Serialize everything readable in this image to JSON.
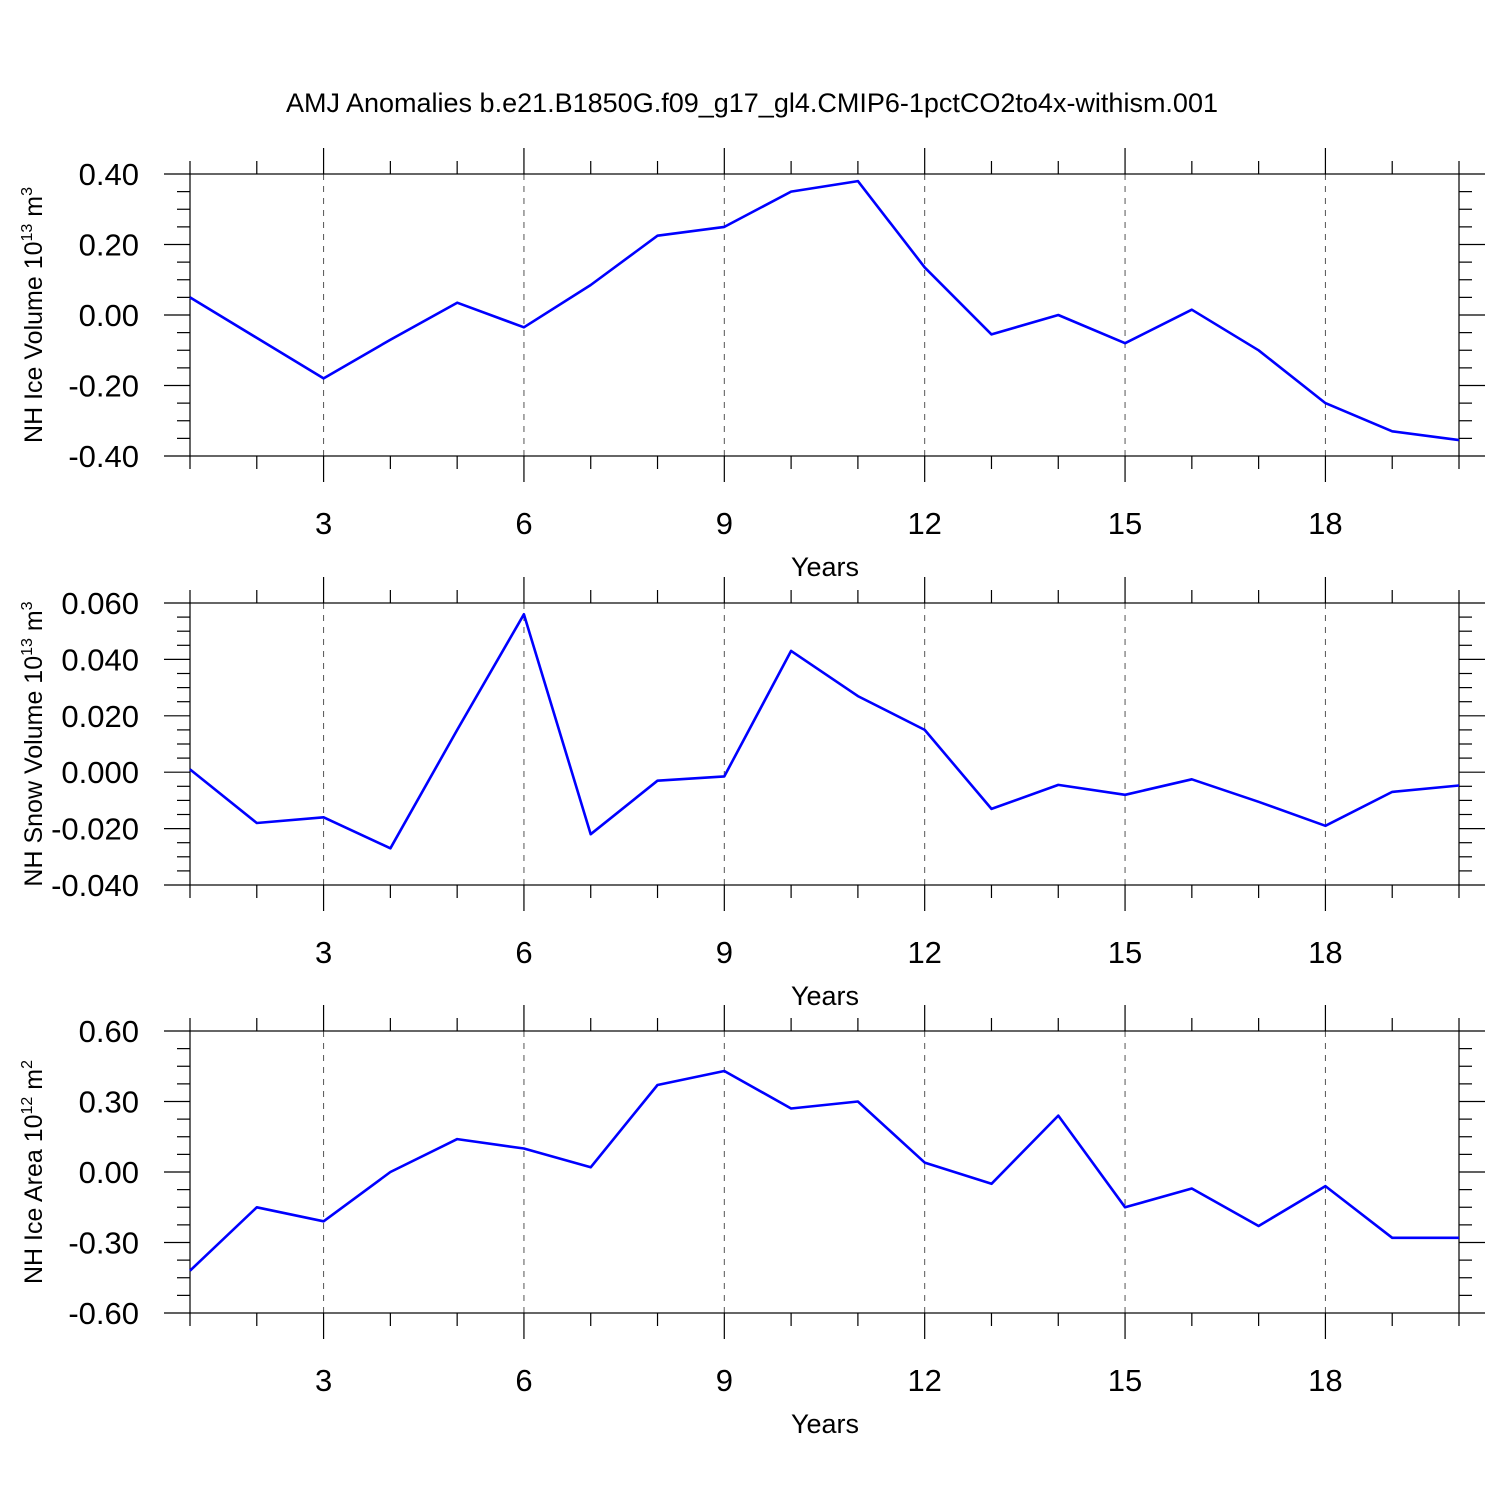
{
  "title": "AMJ Anomalies b.e21.B1850G.f09_g17_gl4.CMIP6-1pctCO2to4x-withism.001",
  "line_color": "#0000ff",
  "chart_data": [
    {
      "type": "line",
      "ylabel": "NH Ice Volume 10",
      "ylabel_sup1": "13",
      "ylabel_mid": " m",
      "ylabel_sup2": "3",
      "xlabel": "Years",
      "xlim": [
        1,
        20
      ],
      "ylim": [
        -0.4,
        0.4
      ],
      "yticks": [
        -0.4,
        -0.2,
        0.0,
        0.2,
        0.4
      ],
      "ytick_labels": [
        "-0.40",
        "-0.20",
        "0.00",
        "0.20",
        "0.40"
      ],
      "xticks": [
        3,
        6,
        9,
        12,
        15,
        18
      ],
      "xtick_labels": [
        "3",
        "6",
        "9",
        "12",
        "15",
        "18"
      ],
      "x": [
        1,
        2,
        3,
        4,
        5,
        6,
        7,
        8,
        9,
        10,
        11,
        12,
        13,
        14,
        15,
        16,
        17,
        18,
        19,
        20
      ],
      "y": [
        0.05,
        -0.065,
        -0.18,
        -0.07,
        0.035,
        -0.035,
        0.085,
        0.225,
        0.25,
        0.35,
        0.38,
        0.135,
        -0.055,
        0.0,
        -0.08,
        0.015,
        -0.1,
        -0.25,
        -0.33,
        -0.355
      ]
    },
    {
      "type": "line",
      "ylabel": "NH Snow Volume 10",
      "ylabel_sup1": "13",
      "ylabel_mid": " m",
      "ylabel_sup2": "3",
      "xlabel": "Years",
      "xlim": [
        1,
        20
      ],
      "ylim": [
        -0.04,
        0.06
      ],
      "yticks": [
        -0.04,
        -0.02,
        0.0,
        0.02,
        0.04,
        0.06
      ],
      "ytick_labels": [
        "-0.040",
        "-0.020",
        "0.000",
        "0.020",
        "0.040",
        "0.060"
      ],
      "xticks": [
        3,
        6,
        9,
        12,
        15,
        18
      ],
      "xtick_labels": [
        "3",
        "6",
        "9",
        "12",
        "15",
        "18"
      ],
      "x": [
        1,
        2,
        3,
        4,
        5,
        6,
        7,
        8,
        9,
        10,
        11,
        12,
        13,
        14,
        15,
        16,
        17,
        18,
        19,
        20
      ],
      "y": [
        0.001,
        -0.018,
        -0.016,
        -0.027,
        0.015,
        0.056,
        -0.022,
        -0.003,
        -0.0015,
        0.043,
        0.027,
        0.015,
        -0.013,
        -0.0045,
        -0.008,
        -0.0025,
        -0.0105,
        -0.019,
        -0.007,
        -0.0047
      ]
    },
    {
      "type": "line",
      "ylabel": "NH Ice Area 10",
      "ylabel_sup1": "12",
      "ylabel_mid": " m",
      "ylabel_sup2": "2",
      "xlabel": "Years",
      "xlim": [
        1,
        20
      ],
      "ylim": [
        -0.6,
        0.6
      ],
      "yticks": [
        -0.6,
        -0.3,
        0.0,
        0.3,
        0.6
      ],
      "ytick_labels": [
        "-0.60",
        "-0.30",
        "0.00",
        "0.30",
        "0.60"
      ],
      "xticks": [
        3,
        6,
        9,
        12,
        15,
        18
      ],
      "xtick_labels": [
        "3",
        "6",
        "9",
        "12",
        "15",
        "18"
      ],
      "x": [
        1,
        2,
        3,
        4,
        5,
        6,
        7,
        8,
        9,
        10,
        11,
        12,
        13,
        14,
        15,
        16,
        17,
        18,
        19,
        20
      ],
      "y": [
        -0.42,
        -0.15,
        -0.21,
        0.0,
        0.14,
        0.1,
        0.02,
        0.37,
        0.43,
        0.27,
        0.3,
        0.04,
        -0.05,
        0.24,
        -0.15,
        -0.07,
        -0.23,
        -0.06,
        -0.28,
        -0.28
      ]
    }
  ]
}
